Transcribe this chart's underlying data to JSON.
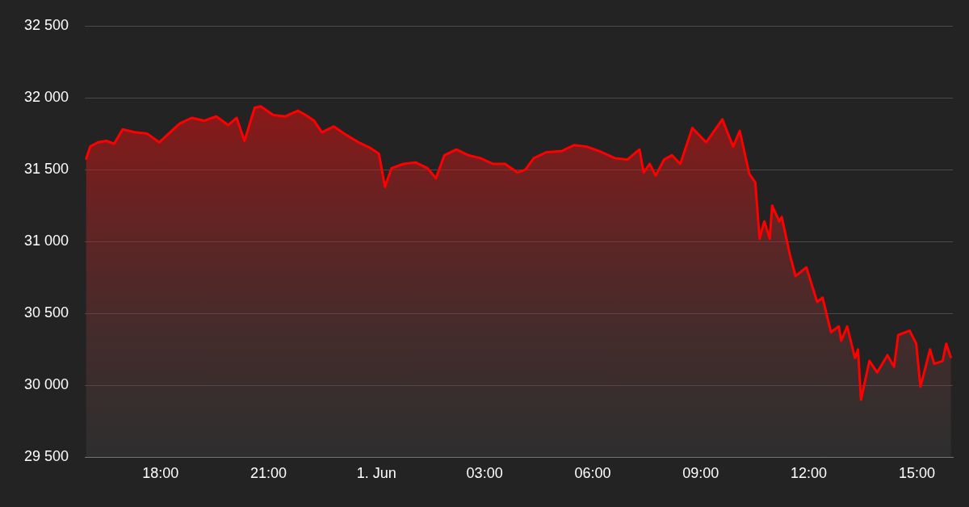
{
  "chart_data": {
    "type": "area",
    "x": [
      "--05-31T15:56",
      "--05-31T16:03",
      "--05-31T16:16",
      "--05-31T16:30",
      "--05-31T16:43",
      "--05-31T16:57",
      "--05-31T17:17",
      "--05-31T17:38",
      "--05-31T17:58",
      "--05-31T18:11",
      "--05-31T18:32",
      "--05-31T18:52",
      "--05-31T19:13",
      "--05-31T19:33",
      "--05-31T19:53",
      "--05-31T20:07",
      "--05-31T20:20",
      "--05-31T20:37",
      "--05-31T20:47",
      "--05-31T21:08",
      "--05-31T21:28",
      "--05-31T21:49",
      "--05-31T22:02",
      "--05-31T22:16",
      "--05-31T22:29",
      "--05-31T22:49",
      "--05-31T23:10",
      "--05-31T23:30",
      "--05-31T23:50",
      "--06-01T00:04",
      "--06-01T00:14",
      "--06-01T00:25",
      "--06-01T00:45",
      "--06-01T01:05",
      "--06-01T01:25",
      "--06-01T01:39",
      "--06-01T01:53",
      "--06-01T02:13",
      "--06-01T02:33",
      "--06-01T02:53",
      "--06-01T03:14",
      "--06-01T03:34",
      "--06-01T03:55",
      "--06-01T04:08",
      "--06-01T04:22",
      "--06-01T04:42",
      "--06-01T05:09",
      "--06-01T05:29",
      "--06-01T05:50",
      "--06-01T06:10",
      "--06-01T06:37",
      "--06-01T06:58",
      "--06-01T07:18",
      "--06-01T07:25",
      "--06-01T07:35",
      "--06-01T07:45",
      "--06-01T07:59",
      "--06-01T08:12",
      "--06-01T08:26",
      "--06-01T08:46",
      "--06-01T09:09",
      "--06-01T09:36",
      "--06-01T09:54",
      "--06-01T10:05",
      "--06-01T10:21",
      "--06-01T10:31",
      "--06-01T10:38",
      "--06-01T10:46",
      "--06-01T10:55",
      "--06-01T10:59",
      "--06-01T11:11",
      "--06-01T11:15",
      "--06-01T11:29",
      "--06-01T11:38",
      "--06-01T11:56",
      "--06-01T12:14",
      "--06-01T12:23",
      "--06-01T12:37",
      "--06-01T12:50",
      "--06-01T12:54",
      "--06-01T13:04",
      "--06-01T13:17",
      "--06-01T13:22",
      "--06-01T13:27",
      "--06-01T13:41",
      "--06-01T13:54",
      "--06-01T14:11",
      "--06-01T14:22",
      "--06-01T14:29",
      "--06-01T14:48",
      "--06-01T14:59",
      "--06-01T15:06",
      "--06-01T15:22",
      "--06-01T15:29",
      "--06-01T15:43",
      "--06-01T15:49",
      "--06-01T15:57"
    ],
    "series": [
      {
        "color": "#ff0000",
        "values": [
          31570,
          31660,
          31690,
          31700,
          31680,
          31780,
          31760,
          31750,
          31690,
          31740,
          31820,
          31860,
          31840,
          31870,
          31810,
          31860,
          31700,
          31930,
          31940,
          31880,
          31870,
          31910,
          31880,
          31840,
          31760,
          31800,
          31740,
          31690,
          31650,
          31610,
          31380,
          31510,
          31540,
          31550,
          31510,
          31440,
          31600,
          31640,
          31600,
          31580,
          31540,
          31540,
          31480,
          31500,
          31580,
          31620,
          31630,
          31670,
          31660,
          31630,
          31580,
          31570,
          31640,
          31480,
          31540,
          31460,
          31570,
          31600,
          31540,
          31790,
          31690,
          31850,
          31660,
          31770,
          31470,
          31410,
          31020,
          31140,
          31020,
          31250,
          31140,
          31170,
          30900,
          30760,
          30820,
          30580,
          30610,
          30370,
          30410,
          30310,
          30410,
          30190,
          30250,
          29900,
          30170,
          30090,
          30210,
          30130,
          30350,
          30380,
          30290,
          29990,
          30250,
          30150,
          30170,
          30290,
          30190
        ]
      }
    ],
    "xlim": [
      "--05-31T15:54",
      "--06-01T16:00"
    ],
    "xticks": [
      {
        "value": "--05-31T18:00",
        "label": "18:00"
      },
      {
        "value": "--05-31T21:00",
        "label": "21:00"
      },
      {
        "value": "--06-01",
        "label": "1. Jun"
      },
      {
        "value": "--06-01T03:00",
        "label": "03:00"
      },
      {
        "value": "--06-01T06:00",
        "label": "06:00"
      },
      {
        "value": "--06-01T09:00",
        "label": "09:00"
      },
      {
        "value": "--06-01T12:00",
        "label": "12:00"
      },
      {
        "value": "--06-01T15:00",
        "label": "15:00"
      }
    ],
    "ylim": [
      29500,
      32500
    ],
    "yticks": [
      {
        "value": 29500,
        "label": "29 500"
      },
      {
        "value": 30000,
        "label": "30 000"
      },
      {
        "value": 30500,
        "label": "30 500"
      },
      {
        "value": 31000,
        "label": "31 000"
      },
      {
        "value": 31500,
        "label": "31 500"
      },
      {
        "value": 32000,
        "label": "32 000"
      },
      {
        "value": 32500,
        "label": "32 500"
      }
    ],
    "grid": "y",
    "legend": false,
    "marker": "none",
    "line_style": "solid"
  }
}
